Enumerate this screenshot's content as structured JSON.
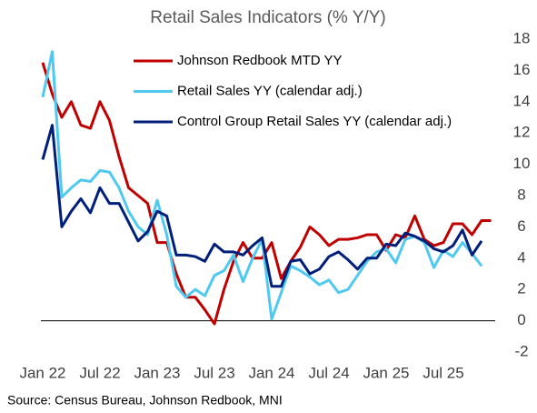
{
  "chart_data": {
    "type": "line",
    "title": "Retail Sales Indicators (% Y/Y)",
    "source": "Source: Census Bureau, Johnson Redbook, MNI",
    "categories": [
      "Jan 22",
      null,
      null,
      null,
      null,
      null,
      "Jul 22",
      null,
      null,
      null,
      null,
      null,
      "Jan 23",
      null,
      null,
      null,
      null,
      null,
      "Jul 23",
      null,
      null,
      null,
      null,
      null,
      "Jan 24",
      null,
      null,
      null,
      null,
      null,
      "Jul 24",
      null,
      null,
      null,
      null,
      null,
      "Jan 25",
      null,
      null,
      null,
      null,
      null,
      "Jul 25",
      null,
      null,
      null,
      null,
      null
    ],
    "series": [
      {
        "name": "Johnson Redbook MTD YY",
        "color": "#c00000",
        "values": [
          16.5,
          14.5,
          13,
          14,
          12.5,
          12.3,
          14,
          12.8,
          10.5,
          8.5,
          8,
          7.5,
          5,
          5,
          3,
          1.5,
          1.5,
          0.7,
          -0.2,
          2,
          3.8,
          5,
          4,
          4,
          5,
          2.7,
          3.8,
          4.7,
          6,
          5.5,
          4.8,
          5.2,
          5.2,
          5.3,
          5.5,
          5.5,
          4.5,
          5.5,
          5.3,
          6.7,
          5.2,
          4.8,
          5,
          6.2,
          6.2,
          5.5,
          6.4,
          6.4
        ]
      },
      {
        "name": "Retail Sales YY (calendar adj.)",
        "color": "#4fc9f0",
        "values": [
          14.3,
          17.2,
          7.9,
          8.5,
          9,
          8.9,
          9.6,
          9.5,
          8.5,
          7,
          6,
          5.5,
          7.7,
          5.5,
          2.2,
          1.5,
          2,
          1.6,
          2.9,
          3.2,
          4.2,
          2.5,
          4,
          5.2,
          0.1,
          1.8,
          3.5,
          3.2,
          2.8,
          2.3,
          2.6,
          1.8,
          2,
          2.9,
          3.8,
          4.4,
          4.6,
          3.7,
          5.2,
          5.4,
          5,
          3.4,
          4.5,
          4.1,
          5,
          4.3,
          3.5,
          null
        ]
      },
      {
        "name": "Control Group Retail Sales YY (calendar adj.)",
        "color": "#001f7a",
        "values": [
          10.3,
          12.5,
          6,
          7,
          7.8,
          6.9,
          8.5,
          7.5,
          7.5,
          6.3,
          5.1,
          5.7,
          7,
          6.7,
          4.2,
          4.2,
          4.1,
          3.8,
          4.9,
          4.4,
          4.4,
          4.2,
          4.8,
          5.3,
          2.2,
          2.2,
          3.8,
          3.9,
          3,
          3.3,
          4.1,
          4.4,
          3.9,
          3.3,
          4,
          4,
          4.9,
          4.8,
          5.6,
          5.4,
          5.1,
          4.6,
          4.4,
          4.8,
          5.8,
          4.2,
          5.1,
          null
        ]
      }
    ],
    "ylim": [
      -2,
      18
    ],
    "yticks": [
      -2,
      0,
      2,
      4,
      6,
      8,
      10,
      12,
      14,
      16,
      18
    ],
    "grid": false
  }
}
